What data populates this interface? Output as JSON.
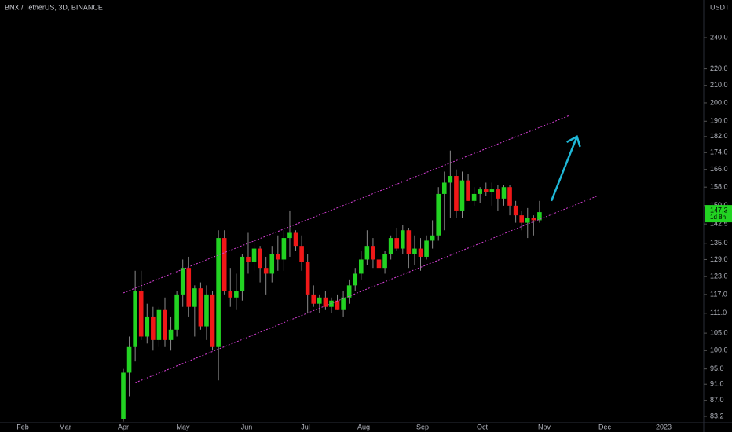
{
  "chart_data": {
    "type": "candlestick",
    "title": "BNX / TetherUS, 3D, BINANCE",
    "y_unit": "USDT",
    "log_scale": true,
    "up_color": "#22d322",
    "down_color": "#f01818",
    "wick_color": "#8a8a8a",
    "x_labels": [
      "Feb",
      "Mar",
      "Apr",
      "May",
      "Jun",
      "Jul",
      "Aug",
      "Sep",
      "Oct",
      "Nov",
      "Dec",
      "2023"
    ],
    "open": [
      82.5,
      94,
      101,
      118,
      104,
      110,
      103,
      112,
      103,
      106,
      117,
      126,
      113,
      119,
      107,
      117,
      101,
      137,
      118,
      116,
      118,
      130,
      128,
      133,
      126,
      124,
      131,
      129,
      137,
      139,
      134,
      128,
      117,
      114,
      116,
      113,
      115,
      112,
      116,
      120,
      124,
      129,
      134,
      129,
      126,
      131,
      137,
      133,
      140,
      131,
      133,
      130,
      136,
      138,
      155,
      160,
      163,
      148,
      161,
      152,
      155,
      157,
      156,
      157,
      153,
      158,
      150,
      146,
      143,
      145,
      144
    ],
    "high": [
      95,
      104,
      125,
      125,
      114,
      113,
      113,
      116,
      110,
      118,
      129,
      130,
      120,
      121,
      120,
      118,
      140,
      140,
      126,
      124,
      131,
      139,
      136,
      134,
      130,
      134,
      138,
      140,
      148,
      140,
      138,
      131,
      120,
      117,
      118,
      116,
      117,
      118,
      122,
      126,
      132,
      140,
      137,
      133,
      132,
      138,
      141,
      142,
      141,
      138,
      137,
      138,
      144,
      158,
      165,
      175,
      166,
      165,
      164,
      158,
      158,
      160,
      160,
      159,
      159,
      159,
      152,
      148,
      149,
      146,
      152
    ],
    "low": [
      82,
      88,
      97,
      103,
      102,
      100,
      101,
      101,
      100,
      104,
      113,
      110,
      104,
      106,
      103,
      100,
      92,
      117,
      113,
      112,
      115,
      124,
      125,
      121,
      117,
      121,
      125,
      125,
      130,
      132,
      125,
      111,
      113,
      111,
      112,
      111,
      112,
      110,
      114,
      118,
      122,
      127,
      126,
      124,
      124,
      129,
      132,
      131,
      126,
      127,
      125,
      129,
      133,
      136,
      140,
      145,
      145,
      145,
      152,
      150,
      151,
      154,
      150,
      148,
      150,
      146,
      143,
      140,
      137,
      138,
      143
    ],
    "close": [
      94,
      101,
      118,
      104,
      110,
      103,
      112,
      103,
      106,
      117,
      126,
      113,
      119,
      107,
      117,
      101,
      137,
      118,
      116,
      118,
      130,
      128,
      133,
      126,
      124,
      131,
      129,
      137,
      139,
      134,
      128,
      117,
      114,
      116,
      113,
      115,
      112,
      116,
      120,
      124,
      129,
      134,
      129,
      126,
      131,
      137,
      133,
      140,
      131,
      133,
      130,
      136,
      138,
      155,
      160,
      163,
      148,
      161,
      152,
      155,
      157,
      156,
      157,
      153,
      158,
      150,
      146,
      143,
      145,
      144,
      147.3
    ],
    "countdown": "1d 8h",
    "channel": {
      "color": "#d63fd6",
      "upper": {
        "x": [
          0,
          75
        ],
        "y": [
          117.5,
          193
        ]
      },
      "lower": {
        "x": [
          2,
          79.6
        ],
        "y": [
          91.4,
          154
        ]
      }
    },
    "arrow": {
      "color": "#1fb8d8",
      "x": [
        72,
        76.3
      ],
      "y": [
        152,
        182
      ]
    },
    "ylim": [
      81.75,
      266.7
    ],
    "yticks": [
      83.2,
      {
        "value": 87,
        "label": "87.0"
      },
      {
        "value": 91,
        "label": "91.0"
      },
      {
        "value": 95,
        "label": "95.0"
      },
      {
        "value": 100,
        "label": "100.0"
      },
      {
        "value": 105,
        "label": "105.0"
      },
      {
        "value": 111,
        "label": "111.0"
      },
      {
        "value": 117,
        "label": "117.0"
      },
      {
        "value": 123,
        "label": "123.0"
      },
      {
        "value": 129,
        "label": "129.0"
      },
      {
        "value": 135,
        "label": "135.0"
      },
      142.5,
      {
        "value": 150,
        "label": "150.0"
      },
      {
        "value": 158,
        "label": "158.0"
      },
      {
        "value": 166,
        "label": "166.0"
      },
      {
        "value": 174,
        "label": "174.0"
      },
      {
        "value": 182,
        "label": "182.0"
      },
      {
        "value": 190,
        "label": "190.0"
      },
      {
        "value": 200,
        "label": "200.0"
      },
      {
        "value": 210,
        "label": "210.0"
      },
      {
        "value": 220,
        "label": "220.0"
      },
      {
        "value": 240,
        "label": "240.0"
      }
    ]
  }
}
